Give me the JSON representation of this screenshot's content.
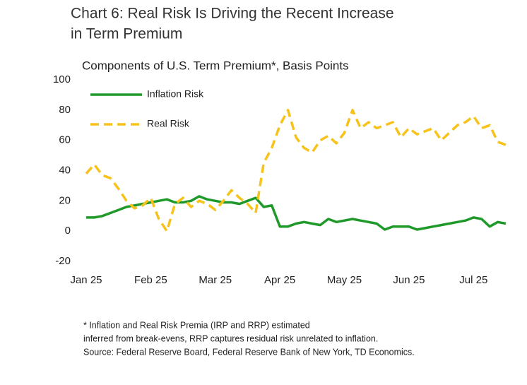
{
  "chart_data": {
    "type": "line",
    "title": "Chart 6: Real Risk Is Driving the Recent Increase",
    "title_line2": "in Term Premium",
    "subtitle": "Components of U.S. Term Premium*, Basis Points",
    "categories": [
      "Jan 25",
      null,
      null,
      null,
      null,
      null,
      null,
      null,
      "Feb 25",
      null,
      null,
      null,
      null,
      null,
      null,
      null,
      "Mar 25",
      null,
      null,
      null,
      null,
      null,
      null,
      null,
      "Apr 25",
      null,
      null,
      null,
      null,
      null,
      null,
      null,
      "May 25",
      null,
      null,
      null,
      null,
      null,
      null,
      null,
      "Jun 25",
      null,
      null,
      null,
      null,
      null,
      null,
      null,
      "Jul 25",
      null,
      null,
      null,
      null
    ],
    "series": [
      {
        "name": "Inflation Risk",
        "color": "#1f9a2a",
        "dashed": false,
        "values": [
          9,
          9,
          10,
          12,
          14,
          16,
          17,
          18,
          19,
          20,
          21,
          19,
          19,
          20,
          23,
          21,
          20,
          19,
          19,
          18,
          20,
          22,
          16,
          17,
          3,
          3,
          5,
          6,
          5,
          4,
          8,
          6,
          7,
          8,
          7,
          6,
          5,
          1,
          3,
          3,
          3,
          1,
          2,
          3,
          4,
          5,
          6,
          7,
          9,
          8,
          3,
          6,
          5
        ]
      },
      {
        "name": "Real Risk",
        "color": "#f7c21a",
        "dashed": true,
        "values": [
          38,
          44,
          37,
          35,
          28,
          20,
          15,
          17,
          22,
          8,
          0,
          18,
          22,
          16,
          20,
          18,
          14,
          20,
          27,
          22,
          18,
          12,
          45,
          55,
          70,
          80,
          62,
          55,
          52,
          60,
          63,
          58,
          65,
          80,
          68,
          72,
          68,
          70,
          72,
          62,
          68,
          64,
          66,
          68,
          60,
          65,
          70,
          72,
          76,
          68,
          70,
          59,
          57
        ]
      }
    ],
    "ylim": [
      -20,
      100
    ],
    "yticks": [
      -20,
      0,
      20,
      40,
      60,
      80,
      100
    ],
    "grid": false,
    "legend": "upper-left",
    "notes": [
      "* Inflation and Real Risk Premia (IRP and RRP) estimated",
      "inferred from break-evens, RRP captures residual risk unrelated to inflation.",
      "Source: Federal Reserve Board, Federal Reserve Bank of New York, TD Economics."
    ]
  }
}
